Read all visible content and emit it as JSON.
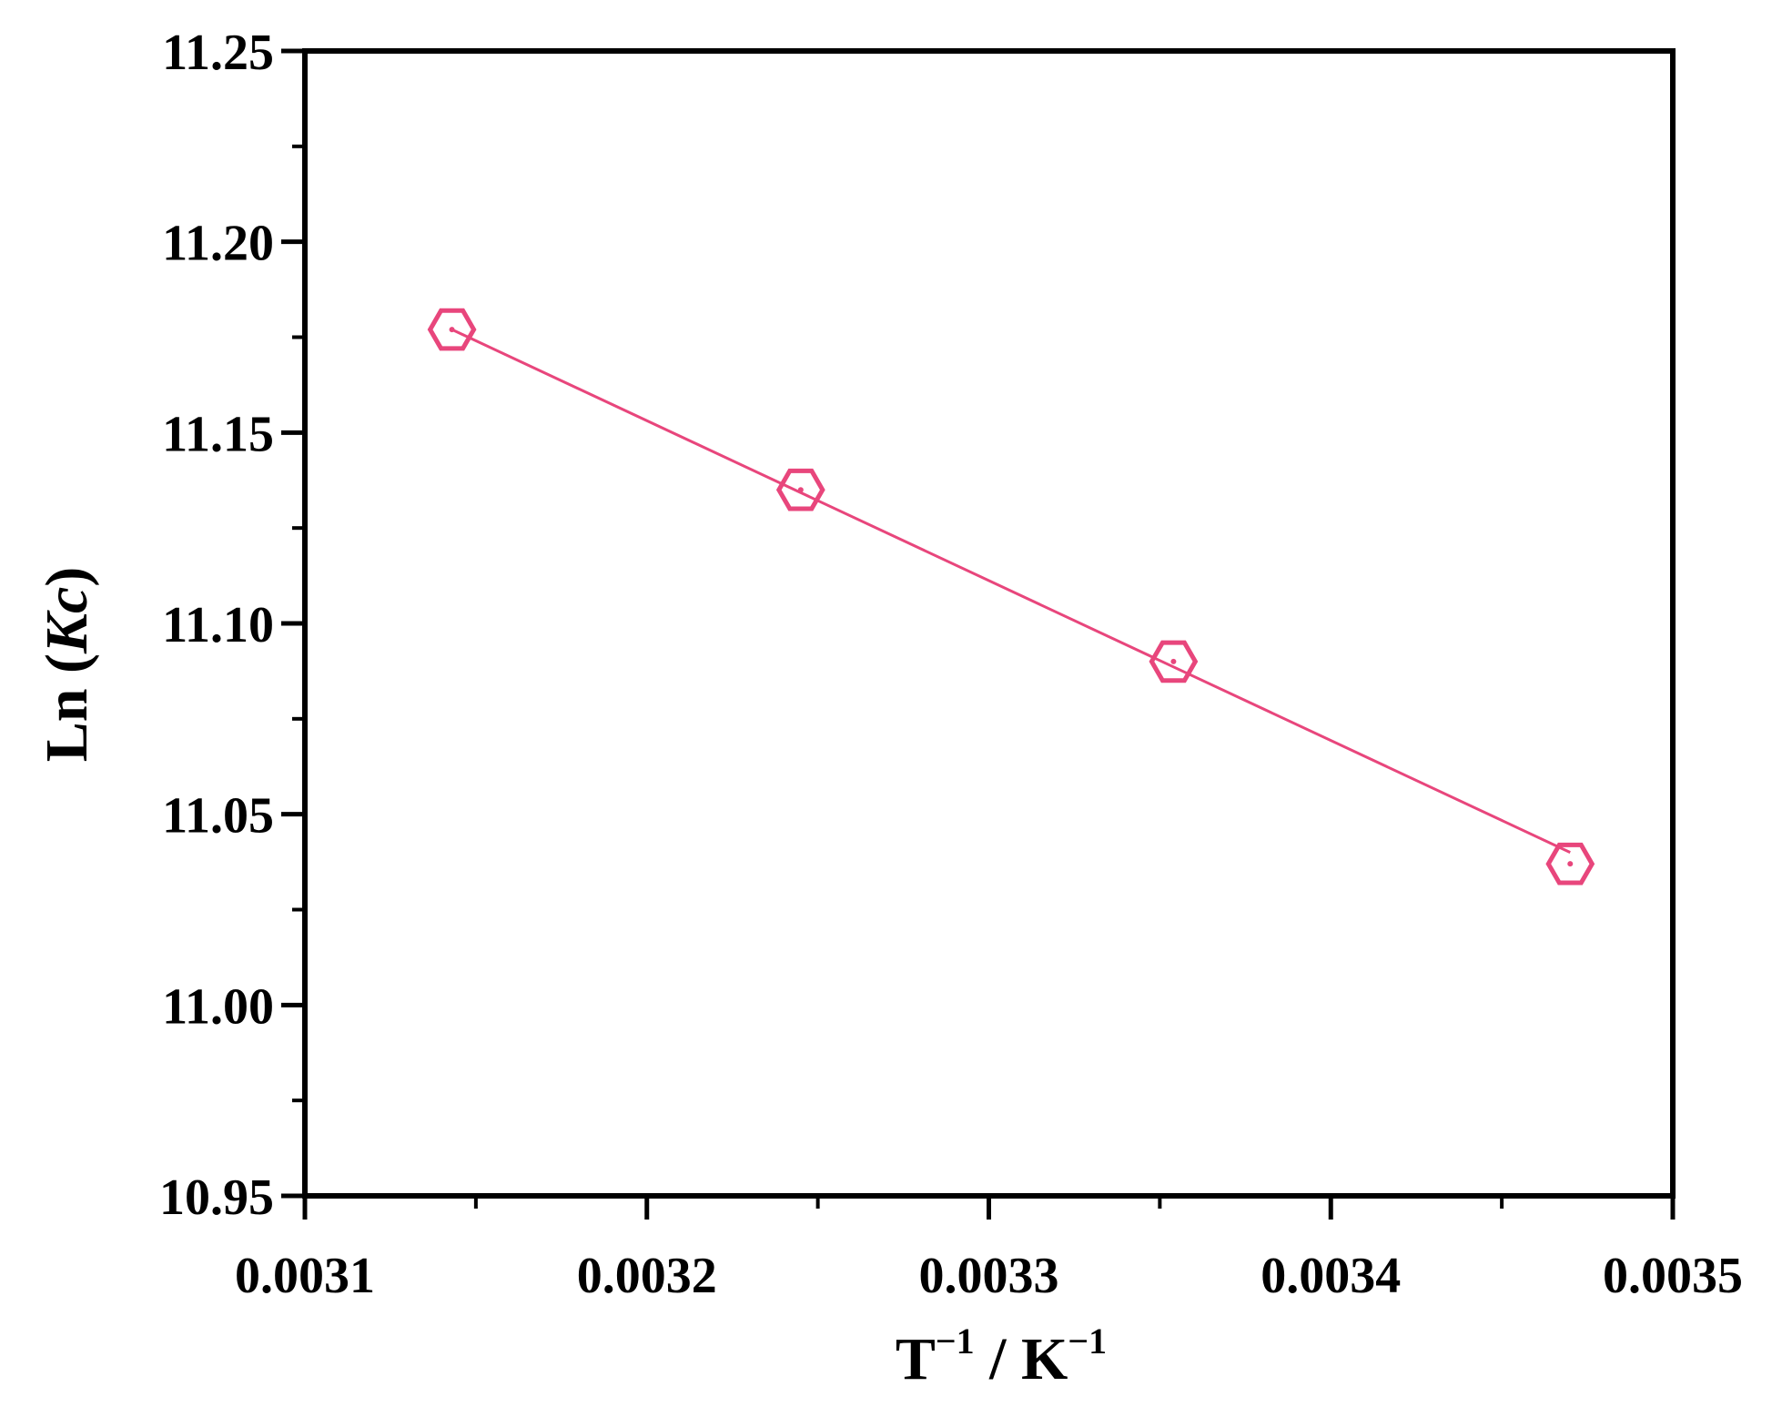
{
  "chart_data": {
    "type": "scatter",
    "title": "",
    "xlabel": {
      "base": "T",
      "base_sup": "−1",
      "sep": " / ",
      "unit": "K",
      "unit_sup": "−1"
    },
    "ylabel": {
      "prefix": "Ln (",
      "italic": "Kc",
      "suffix": ")"
    },
    "xlim": [
      0.0031,
      0.0035
    ],
    "ylim": [
      10.95,
      11.25
    ],
    "x_ticks": [
      "0.0031",
      "0.0032",
      "0.0033",
      "0.0034",
      "0.0035"
    ],
    "y_ticks": [
      "10.95",
      "11.00",
      "11.05",
      "11.10",
      "11.15",
      "11.20",
      "11.25"
    ],
    "grid": false,
    "legend": "none",
    "series": [
      {
        "marker": "hexagon-open",
        "color": "#e8467c",
        "x": [
          0.003143,
          0.003245,
          0.003354,
          0.00347
        ],
        "y": [
          11.177,
          11.135,
          11.09,
          11.037
        ]
      }
    ],
    "fit_line": {
      "color": "#e8467c",
      "x": [
        0.003143,
        0.00347
      ],
      "y": [
        11.177,
        11.04
      ]
    }
  }
}
